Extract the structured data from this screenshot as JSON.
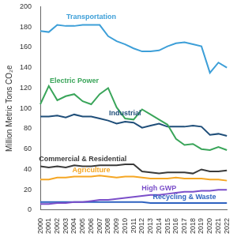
{
  "chart_data": {
    "type": "line",
    "y_label": "Million Metric Tons CO₂e",
    "categories": [
      "2000",
      "2001",
      "2002",
      "2003",
      "2004",
      "2005",
      "2006",
      "2007",
      "2008",
      "2009",
      "2010",
      "2011",
      "2012",
      "2013",
      "2014",
      "2015",
      "2016",
      "2017",
      "2018",
      "2019",
      "2020",
      "2021",
      "2022"
    ],
    "series": [
      {
        "name": "Transportation",
        "color": "#3d9fd8",
        "values": [
          176,
          175,
          182,
          181,
          181,
          182,
          182,
          182,
          171,
          166,
          163,
          159,
          156,
          156,
          157,
          161,
          164,
          165,
          163,
          161,
          135,
          145,
          140
        ]
      },
      {
        "name": "Electric Power",
        "color": "#3aa55a",
        "values": [
          104,
          122,
          108,
          112,
          114,
          107,
          104,
          114,
          120,
          101,
          90,
          89,
          99,
          94,
          89,
          84,
          70,
          64,
          65,
          60,
          59,
          62,
          59
        ]
      },
      {
        "name": "Industrial",
        "color": "#1f4e79",
        "values": [
          92,
          92,
          93,
          91,
          94,
          92,
          92,
          90,
          88,
          85,
          87,
          86,
          81,
          83,
          85,
          82,
          82,
          82,
          83,
          82,
          74,
          75,
          73
        ]
      },
      {
        "name": "Commercial & Residential",
        "color": "#3a3a3a",
        "values": [
          43,
          42,
          43,
          42,
          44,
          43,
          43,
          44,
          44,
          44,
          45,
          45,
          38,
          37,
          36,
          37,
          37,
          37,
          36,
          40,
          38,
          38,
          39
        ]
      },
      {
        "name": "Agriculture",
        "color": "#f5a623",
        "values": [
          30,
          30,
          32,
          32,
          33,
          33,
          33,
          34,
          33,
          32,
          33,
          33,
          32,
          31,
          31,
          31,
          32,
          31,
          31,
          31,
          30,
          30,
          29
        ]
      },
      {
        "name": "High GWP",
        "color": "#7b4fc9",
        "values": [
          6,
          6,
          7,
          7,
          8,
          8,
          9,
          10,
          10,
          11,
          12,
          13,
          14,
          15,
          15,
          16,
          17,
          18,
          18,
          19,
          19,
          20,
          20
        ]
      },
      {
        "name": "Recycling & Waste",
        "color": "#2e62c0",
        "values": [
          8,
          8,
          8,
          8,
          8,
          8,
          8,
          8,
          8,
          8,
          8,
          8,
          8,
          7,
          7,
          7,
          7,
          7,
          7,
          7,
          7,
          7,
          7
        ]
      }
    ],
    "ylim": [
      0,
      200
    ],
    "yticks": [
      0,
      20,
      40,
      60,
      80,
      100,
      120,
      140,
      160,
      180,
      200
    ],
    "grid": false
  }
}
